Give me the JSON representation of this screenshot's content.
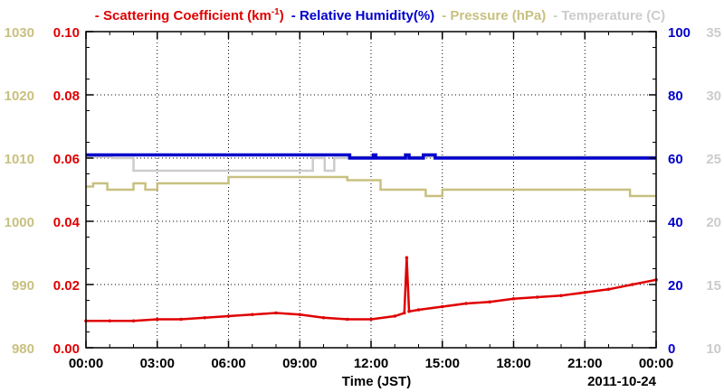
{
  "chart_data": {
    "type": "line",
    "legend": [
      {
        "key": "scat",
        "label": "Scattering Coefficient (km",
        "sup": "-1",
        "suffix": ")",
        "color": "#e00000"
      },
      {
        "key": "rh",
        "label": "Relative Humidity(%)",
        "sup": "",
        "suffix": "",
        "color": "#0000cc"
      },
      {
        "key": "pres",
        "label": "Pressure (hPa)",
        "sup": "",
        "suffix": "",
        "color": "#c8c080"
      },
      {
        "key": "temp",
        "label": "Temperature (C)",
        "sup": "",
        "suffix": "",
        "color": "#cccccc"
      }
    ],
    "xlabel": "Time (JST)",
    "date_label": "2011-10-24",
    "x_range": [
      0,
      24
    ],
    "x_ticks": [
      {
        "v": 0,
        "label": "00:00"
      },
      {
        "v": 3,
        "label": "03:00"
      },
      {
        "v": 6,
        "label": "06:00"
      },
      {
        "v": 9,
        "label": "09:00"
      },
      {
        "v": 12,
        "label": "12:00"
      },
      {
        "v": 15,
        "label": "15:00"
      },
      {
        "v": 18,
        "label": "18:00"
      },
      {
        "v": 21,
        "label": "21:00"
      },
      {
        "v": 24,
        "label": "00:00"
      }
    ],
    "grid": true,
    "axes": {
      "pressure": {
        "range": [
          980,
          1030
        ],
        "ticks": [
          "980",
          "990",
          "1000",
          "1010",
          "1020",
          "1030"
        ],
        "color": "#c8c080",
        "side": "left-outer"
      },
      "scattering": {
        "range": [
          0,
          0.1
        ],
        "ticks": [
          "0.00",
          "0.02",
          "0.04",
          "0.06",
          "0.08",
          "0.10"
        ],
        "color": "#e00000",
        "side": "left-inner"
      },
      "humidity": {
        "range": [
          0,
          100
        ],
        "ticks": [
          "0",
          "20",
          "40",
          "60",
          "80",
          "100"
        ],
        "color": "#0000cc",
        "side": "right-inner"
      },
      "temperature": {
        "range": [
          10,
          35
        ],
        "ticks": [
          "10",
          "15",
          "20",
          "25",
          "30",
          "35"
        ],
        "color": "#cccccc",
        "side": "right-outer"
      }
    },
    "series": [
      {
        "key": "temp",
        "axis": "temperature",
        "color": "#cccccc",
        "step": true,
        "x": [
          0,
          1.0,
          1.1,
          1.9,
          2.0,
          9.5,
          9.55,
          10.0,
          10.05,
          10.4,
          10.45,
          11.0,
          11.05,
          24
        ],
        "y": [
          25.1,
          25.1,
          25.0,
          25.0,
          24.0,
          24.0,
          25.0,
          25.0,
          24.0,
          24.0,
          25.0,
          25.0,
          25.1,
          25.1
        ]
      },
      {
        "key": "rh",
        "axis": "humidity",
        "color": "#0000cc",
        "step": true,
        "x": [
          0,
          10.8,
          11.1,
          12.1,
          12.2,
          13.4,
          13.45,
          13.6,
          14.2,
          14.6,
          14.7,
          24
        ],
        "y": [
          61,
          61,
          60,
          61,
          60,
          60,
          61,
          60,
          61,
          61,
          60,
          60
        ]
      },
      {
        "key": "pres",
        "axis": "pressure",
        "color": "#c8c080",
        "step": true,
        "x": [
          0,
          0.3,
          0.9,
          1.8,
          2.0,
          2.5,
          3.0,
          6.0,
          10.5,
          11.0,
          12.0,
          12.4,
          14.0,
          14.3,
          15.0,
          22.5,
          22.9,
          24
        ],
        "y": [
          1005.5,
          1006,
          1005,
          1005,
          1006,
          1005,
          1006,
          1007,
          1007,
          1006.5,
          1006.5,
          1005,
          1005,
          1004,
          1005,
          1005,
          1004,
          1004
        ]
      },
      {
        "key": "scat",
        "axis": "scattering",
        "color": "#e00000",
        "step": false,
        "markers": true,
        "x": [
          0,
          1,
          2,
          3,
          4,
          5,
          6,
          7,
          8,
          9,
          10,
          11,
          12,
          13,
          13.4,
          13.5,
          13.6,
          14,
          15,
          16,
          17,
          18,
          19,
          20,
          21,
          22,
          23,
          24
        ],
        "y": [
          0.0085,
          0.0085,
          0.0085,
          0.009,
          0.009,
          0.0095,
          0.01,
          0.0105,
          0.011,
          0.0105,
          0.0095,
          0.009,
          0.009,
          0.01,
          0.011,
          0.0285,
          0.0115,
          0.012,
          0.013,
          0.014,
          0.0145,
          0.0155,
          0.016,
          0.0165,
          0.0175,
          0.0185,
          0.02,
          0.0215
        ]
      }
    ]
  }
}
